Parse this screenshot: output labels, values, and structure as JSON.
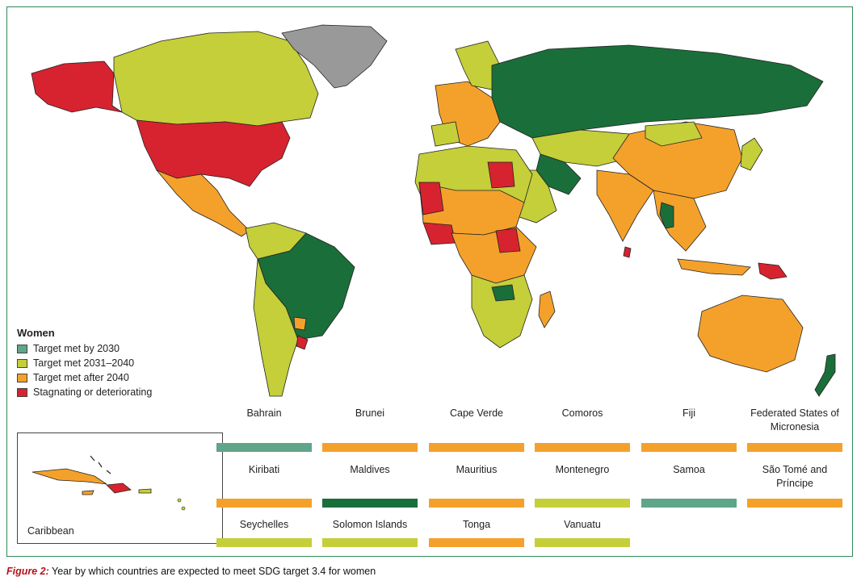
{
  "legend": {
    "title": "Women",
    "items": [
      {
        "label": "Target met by 2030",
        "color": "#5fa589"
      },
      {
        "label": "Target met 2031–2040",
        "color": "#c4cf3a"
      },
      {
        "label": "Target met after 2040",
        "color": "#f4a12c"
      },
      {
        "label": "Stagnating or deteriorating",
        "color": "#d7232f"
      }
    ]
  },
  "colors": {
    "dark_green": "#1a6e3a",
    "light_green": "#5fa589",
    "yellow_green": "#c4cf3a",
    "orange": "#f4a12c",
    "red": "#d7232f",
    "grey": "#999999",
    "frame": "#2e8b57"
  },
  "inset": {
    "label": "Caribbean"
  },
  "small_states": [
    {
      "name": "Bahrain",
      "color": "#5fa589"
    },
    {
      "name": "Brunei",
      "color": "#f4a12c"
    },
    {
      "name": "Cape Verde",
      "color": "#f4a12c"
    },
    {
      "name": "Comoros",
      "color": "#f4a12c"
    },
    {
      "name": "Fiji",
      "color": "#f4a12c"
    },
    {
      "name": "Federated States of Micronesia",
      "color": "#f4a12c"
    },
    {
      "name": "Kiribati",
      "color": "#f4a12c"
    },
    {
      "name": "Maldives",
      "color": "#1a6e3a"
    },
    {
      "name": "Mauritius",
      "color": "#f4a12c"
    },
    {
      "name": "Montenegro",
      "color": "#c4cf3a"
    },
    {
      "name": "Samoa",
      "color": "#5fa589"
    },
    {
      "name": "São Tomé and Príncipe",
      "color": "#f4a12c"
    },
    {
      "name": "Seychelles",
      "color": "#c4cf3a"
    },
    {
      "name": "Solomon Islands",
      "color": "#c4cf3a"
    },
    {
      "name": "Tonga",
      "color": "#f4a12c"
    },
    {
      "name": "Vanuatu",
      "color": "#c4cf3a"
    }
  ],
  "caption": {
    "figure": "Figure 2:",
    "text": " Year by which countries are expected to meet SDG target 3.4 for women"
  }
}
